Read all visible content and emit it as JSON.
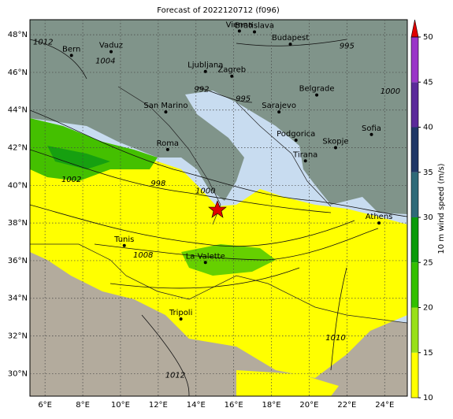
{
  "title": "Forecast of 2022120712 (f096)",
  "map": {
    "lonlim": [
      5.2,
      25.2
    ],
    "latlim": [
      28.8,
      48.8
    ],
    "lon_ticks": [
      {
        "value": 6,
        "label": "6°E"
      },
      {
        "value": 8,
        "label": "8°E"
      },
      {
        "value": 10,
        "label": "10°E"
      },
      {
        "value": 12,
        "label": "12°E"
      },
      {
        "value": 14,
        "label": "14°E"
      },
      {
        "value": 16,
        "label": "16°E"
      },
      {
        "value": 18,
        "label": "18°E"
      },
      {
        "value": 20,
        "label": "20°E"
      },
      {
        "value": 22,
        "label": "22°E"
      },
      {
        "value": 24,
        "label": "24°E"
      }
    ],
    "lat_ticks": [
      {
        "value": 30,
        "label": "30°N"
      },
      {
        "value": 32,
        "label": "32°N"
      },
      {
        "value": 34,
        "label": "34°N"
      },
      {
        "value": 36,
        "label": "36°N"
      },
      {
        "value": 38,
        "label": "38°N"
      },
      {
        "value": 40,
        "label": "40°N"
      },
      {
        "value": 42,
        "label": "42°N"
      },
      {
        "value": 44,
        "label": "44°N"
      },
      {
        "value": 46,
        "label": "46°N"
      },
      {
        "value": 48,
        "label": "48°N"
      }
    ],
    "cities": [
      {
        "name": "Vienna",
        "lon": 16.3,
        "lat": 48.2
      },
      {
        "name": "Bratislava",
        "lon": 17.1,
        "lat": 48.15
      },
      {
        "name": "Budapest",
        "lon": 19.0,
        "lat": 47.5
      },
      {
        "name": "Vaduz",
        "lon": 9.5,
        "lat": 47.1
      },
      {
        "name": "Bern",
        "lon": 7.4,
        "lat": 46.9
      },
      {
        "name": "Ljubljana",
        "lon": 14.5,
        "lat": 46.05
      },
      {
        "name": "Zagreb",
        "lon": 15.9,
        "lat": 45.8
      },
      {
        "name": "San Marino",
        "lon": 12.4,
        "lat": 43.9
      },
      {
        "name": "Belgrade",
        "lon": 20.4,
        "lat": 44.8
      },
      {
        "name": "Sarajevo",
        "lon": 18.4,
        "lat": 43.9
      },
      {
        "name": "Podgorica",
        "lon": 19.3,
        "lat": 42.4
      },
      {
        "name": "Skopje",
        "lon": 21.4,
        "lat": 42.0
      },
      {
        "name": "Sofia",
        "lon": 23.3,
        "lat": 42.7
      },
      {
        "name": "Tirana",
        "lon": 19.8,
        "lat": 41.3
      },
      {
        "name": "Roma",
        "lon": 12.5,
        "lat": 41.9
      },
      {
        "name": "Athens",
        "lon": 23.7,
        "lat": 38.0
      },
      {
        "name": "Tunis",
        "lon": 10.2,
        "lat": 36.8
      },
      {
        "name": "La Valette",
        "lon": 14.5,
        "lat": 35.9
      },
      {
        "name": "Tripoli",
        "lon": 13.2,
        "lat": 32.9
      }
    ],
    "isobar_labels": [
      {
        "value": 1012,
        "lon": 5.9,
        "lat": 47.6
      },
      {
        "value": 1004,
        "lon": 9.2,
        "lat": 46.6
      },
      {
        "value": 995,
        "lon": 22.0,
        "lat": 47.4
      },
      {
        "value": 992,
        "lon": 14.3,
        "lat": 45.1
      },
      {
        "value": 995,
        "lon": 16.5,
        "lat": 44.6
      },
      {
        "value": 1000,
        "lon": 24.3,
        "lat": 45.0
      },
      {
        "value": 1002,
        "lon": 7.4,
        "lat": 40.3
      },
      {
        "value": 998,
        "lon": 12.0,
        "lat": 40.1
      },
      {
        "value": 1000,
        "lon": 14.5,
        "lat": 39.7
      },
      {
        "value": 1008,
        "lon": 11.2,
        "lat": 36.3
      },
      {
        "value": 1010,
        "lon": 21.4,
        "lat": 31.9
      },
      {
        "value": 1012,
        "lon": 12.9,
        "lat": 29.9
      }
    ]
  },
  "colorbar": {
    "label": "10 m wind speed (m/s)",
    "lim": [
      10,
      50
    ],
    "ticks": [
      10,
      15,
      20,
      25,
      30,
      35,
      40,
      45,
      50
    ],
    "colors": [
      "#ffff00",
      "#99e01a",
      "#33c000",
      "#0a9a0a",
      "#2f6a78",
      "#1f3766",
      "#5b2a9a",
      "#9a35c8"
    ],
    "extend_color": "#e00000"
  }
}
